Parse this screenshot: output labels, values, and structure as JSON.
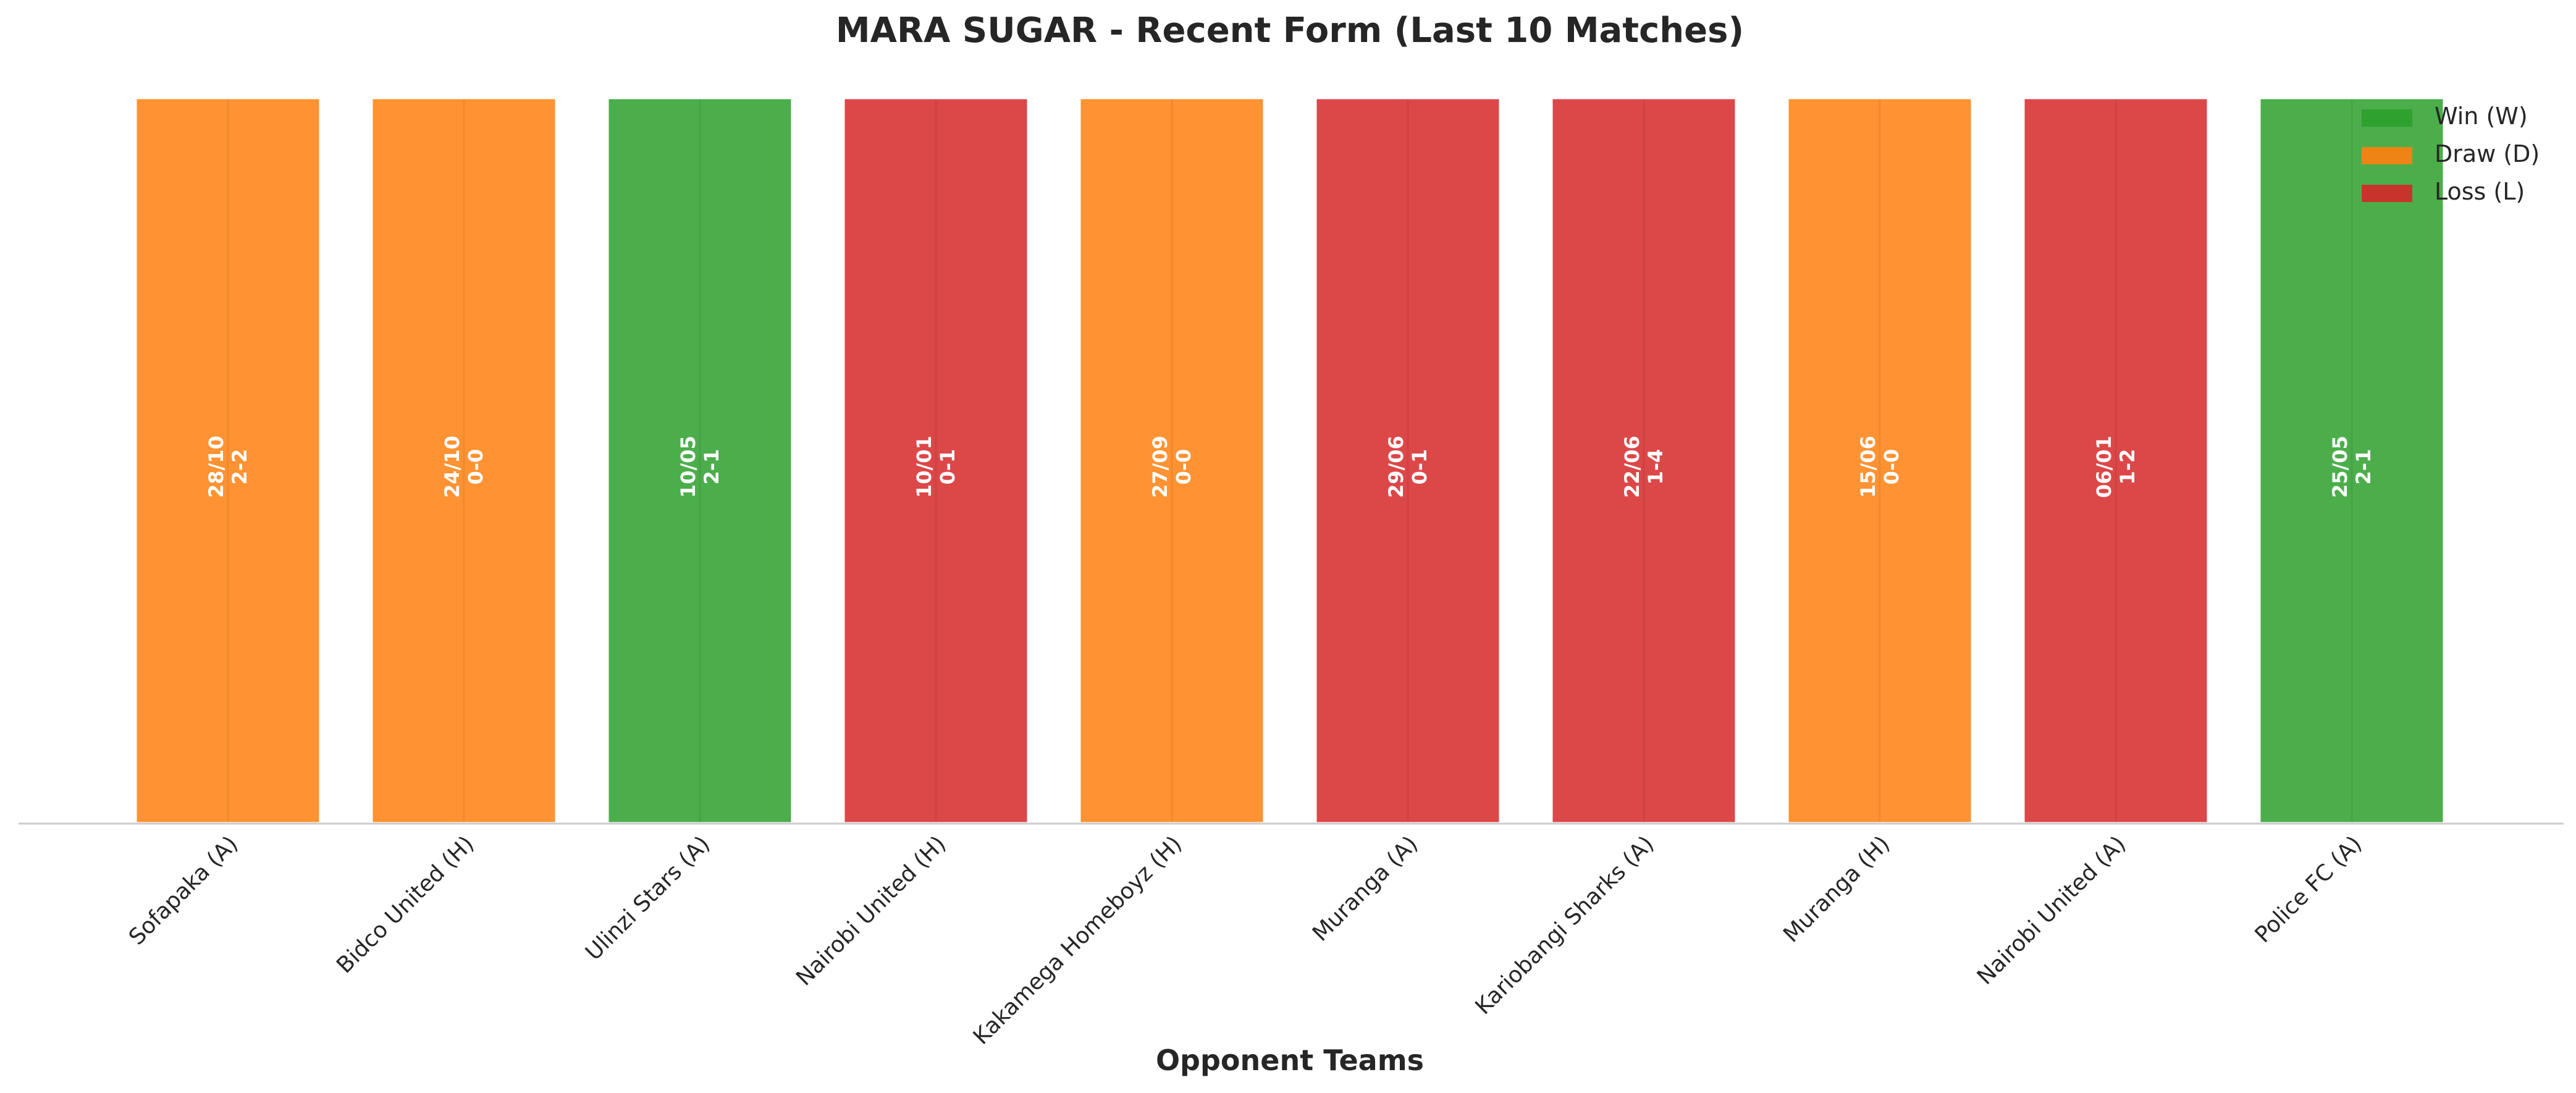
{
  "chart_data": {
    "type": "bar",
    "title": "MARA SUGAR - Recent Form (Last 10 Matches)",
    "xlabel": "Opponent Teams",
    "ylabel": "",
    "categories": [
      "Sofapaka (A)",
      "Bidco United (H)",
      "Ulinzi Stars (A)",
      "Nairobi United (H)",
      "Kakamega Homeboyz (H)",
      "Muranga (A)",
      "Kariobangi Sharks (A)",
      "Muranga (H)",
      "Nairobi United (A)",
      "Police FC (A)"
    ],
    "values": [
      1,
      1,
      1,
      1,
      1,
      1,
      1,
      1,
      1,
      1
    ],
    "results": [
      "D",
      "D",
      "W",
      "L",
      "D",
      "L",
      "L",
      "D",
      "L",
      "W"
    ],
    "dates": [
      "28/10",
      "24/10",
      "10/05",
      "10/01",
      "27/09",
      "29/06",
      "22/06",
      "15/06",
      "06/01",
      "25/05"
    ],
    "scores": [
      "2-2",
      "0-0",
      "2-1",
      "0-1",
      "0-0",
      "0-1",
      "1-4",
      "0-0",
      "1-2",
      "2-1"
    ],
    "ylim": [
      0,
      1
    ],
    "grid": false,
    "legend_position": "top-right",
    "legend": [
      {
        "key": "W",
        "label": "Win (W)",
        "color": "#2ca02c"
      },
      {
        "key": "D",
        "label": "Draw (D)",
        "color": "#ff7f0e"
      },
      {
        "key": "L",
        "label": "Loss (L)",
        "color": "#d62728"
      }
    ]
  }
}
